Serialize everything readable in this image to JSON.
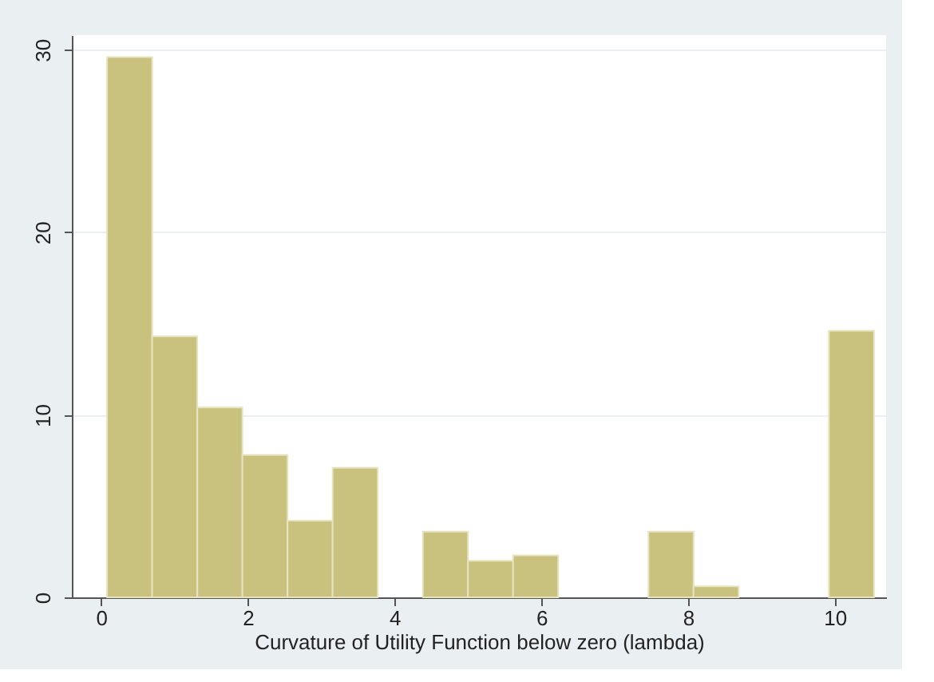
{
  "chart_data": {
    "type": "histogram",
    "xlabel": "Curvature of Utility Function below zero (lambda)",
    "bins": [
      0.08,
      0.695,
      1.31,
      1.925,
      2.54,
      3.155,
      3.77,
      4.385,
      5.0,
      5.615,
      6.23,
      6.845,
      7.46,
      8.075,
      8.69,
      9.305,
      9.92,
      10.535
    ],
    "values": [
      29.6,
      14.3,
      10.4,
      7.8,
      4.2,
      7.1,
      0,
      3.6,
      2.0,
      2.3,
      0,
      0,
      3.6,
      0.6,
      0,
      0,
      14.6
    ],
    "color": "#c9c27f",
    "xlim": [
      -0.4,
      10.7
    ],
    "xticks": [
      0,
      2,
      4,
      6,
      8,
      10
    ],
    "ylim": [
      0,
      30.8
    ],
    "yticks": [
      0,
      10,
      20,
      30
    ],
    "grid": "y"
  }
}
